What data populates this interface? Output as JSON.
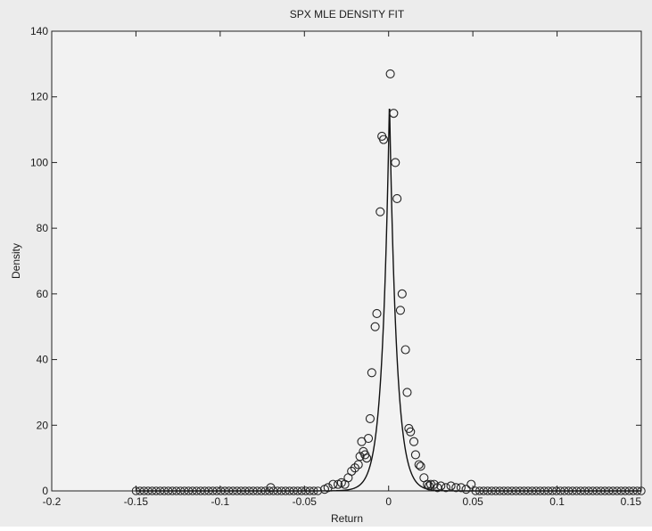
{
  "chart_data": {
    "type": "scatter",
    "title": "SPX MLE DENSITY FIT",
    "xlabel": "Return",
    "ylabel": "Density",
    "xlim": [
      -0.2,
      0.15
    ],
    "ylim": [
      0,
      140
    ],
    "xticks": [
      -0.2,
      -0.15,
      -0.1,
      -0.05,
      0,
      0.05,
      0.1,
      0.15
    ],
    "xtick_labels": [
      "-0.2",
      "-0.15",
      "-0.1",
      "-0.05",
      "0",
      "0.05",
      "0.1",
      "0.15"
    ],
    "yticks": [
      0,
      20,
      40,
      60,
      80,
      100,
      120,
      140
    ],
    "ytick_labels": [
      "0",
      "20",
      "40",
      "60",
      "80",
      "100",
      "120",
      "140"
    ],
    "grid": false,
    "series": [
      {
        "style": "markers",
        "marker": "open-circle",
        "x_range": [
          -0.15,
          0.15
        ],
        "x_step": 0.0024,
        "points": [
          [
            -0.07,
            1.0
          ],
          [
            -0.038,
            0.5
          ],
          [
            -0.036,
            1.0
          ],
          [
            -0.033,
            2.0
          ],
          [
            -0.03,
            2.0
          ],
          [
            -0.028,
            2.5
          ],
          [
            -0.026,
            2.0
          ],
          [
            -0.024,
            4.0
          ],
          [
            -0.022,
            6.0
          ],
          [
            -0.02,
            7.0
          ],
          [
            -0.018,
            8.0
          ],
          [
            -0.017,
            10.5
          ],
          [
            -0.016,
            15.0
          ],
          [
            -0.015,
            12.0
          ],
          [
            -0.014,
            11.0
          ],
          [
            -0.013,
            10.0
          ],
          [
            -0.012,
            16.0
          ],
          [
            -0.011,
            22.0
          ],
          [
            -0.01,
            36.0
          ],
          [
            -0.008,
            50.0
          ],
          [
            -0.007,
            54.0
          ],
          [
            -0.005,
            85.0
          ],
          [
            -0.004,
            108.0
          ],
          [
            -0.003,
            107.0
          ],
          [
            0.001,
            127.0
          ],
          [
            0.003,
            115.0
          ],
          [
            0.004,
            100.0
          ],
          [
            0.005,
            89.0
          ],
          [
            0.007,
            55.0
          ],
          [
            0.008,
            60.0
          ],
          [
            0.01,
            43.0
          ],
          [
            0.011,
            30.0
          ],
          [
            0.012,
            19.0
          ],
          [
            0.013,
            18.0
          ],
          [
            0.015,
            15.0
          ],
          [
            0.016,
            11.0
          ],
          [
            0.018,
            8.0
          ],
          [
            0.019,
            7.5
          ],
          [
            0.021,
            4.0
          ],
          [
            0.023,
            2.0
          ],
          [
            0.024,
            1.5
          ],
          [
            0.025,
            2.0
          ],
          [
            0.027,
            2.0
          ],
          [
            0.029,
            1.0
          ],
          [
            0.031,
            1.5
          ],
          [
            0.034,
            1.0
          ],
          [
            0.037,
            1.5
          ],
          [
            0.04,
            1.0
          ],
          [
            0.043,
            1.0
          ],
          [
            0.046,
            0.5
          ],
          [
            0.049,
            2.0
          ]
        ]
      },
      {
        "style": "line",
        "curve": "fitted-density",
        "x_range": [
          -0.15,
          0.15
        ],
        "peak_x": 0.0005,
        "peak_y": 119
      }
    ]
  }
}
